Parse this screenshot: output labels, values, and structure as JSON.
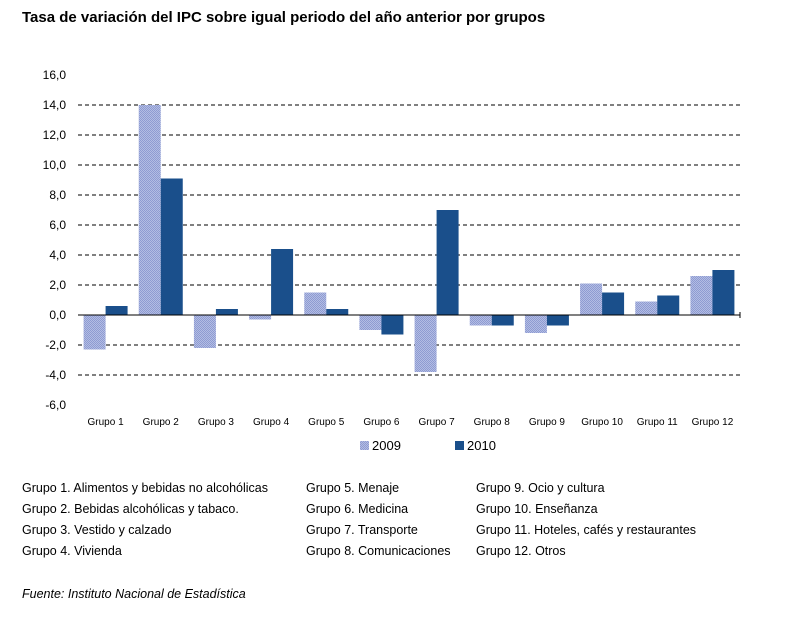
{
  "chart_data": {
    "type": "bar",
    "title": "Tasa de variación del IPC sobre igual periodo del año anterior por grupos",
    "categories": [
      "Grupo 1",
      "Grupo 2",
      "Grupo 3",
      "Grupo 4",
      "Grupo 5",
      "Grupo 6",
      "Grupo 7",
      "Grupo 8",
      "Grupo 9",
      "Grupo 10",
      "Grupo 11",
      "Grupo 12"
    ],
    "series": [
      {
        "name": "2009",
        "color": "#a9b4de",
        "values": [
          -2.3,
          14.0,
          -2.2,
          -0.3,
          1.5,
          -1.0,
          -3.8,
          -0.7,
          -1.2,
          2.1,
          0.9,
          2.6
        ]
      },
      {
        "name": "2010",
        "color": "#1a4f8b",
        "values": [
          0.6,
          9.1,
          0.4,
          4.4,
          0.4,
          -1.3,
          7.0,
          -0.7,
          -0.7,
          1.5,
          1.3,
          3.0
        ]
      }
    ],
    "yticks": [
      "16,0",
      "14,0",
      "12,0",
      "10,0",
      "8,0",
      "6,0",
      "4,0",
      "2,0",
      "0,0",
      "-2,0",
      "-4,0",
      "-6,0"
    ],
    "ylim": [
      -6,
      16
    ],
    "grid": true,
    "legend": "bottom-center"
  },
  "notes": [
    [
      "Grupo 1. Alimentos y bebidas no alcohólicas",
      "Grupo 2. Bebidas alcohólicas y  tabaco.",
      "Grupo 3. Vestido y calzado",
      "Grupo 4. Vivienda"
    ],
    [
      "Grupo 5. Menaje",
      "Grupo 6. Medicina",
      "Grupo 7. Transporte",
      "Grupo 8. Comunicaciones"
    ],
    [
      "Grupo 9. Ocio y cultura",
      "Grupo 10. Enseñanza",
      "Grupo 11. Hoteles, cafés y restaurantes",
      "Grupo 12. Otros"
    ]
  ],
  "source": "Fuente: Instituto Nacional de Estadística"
}
